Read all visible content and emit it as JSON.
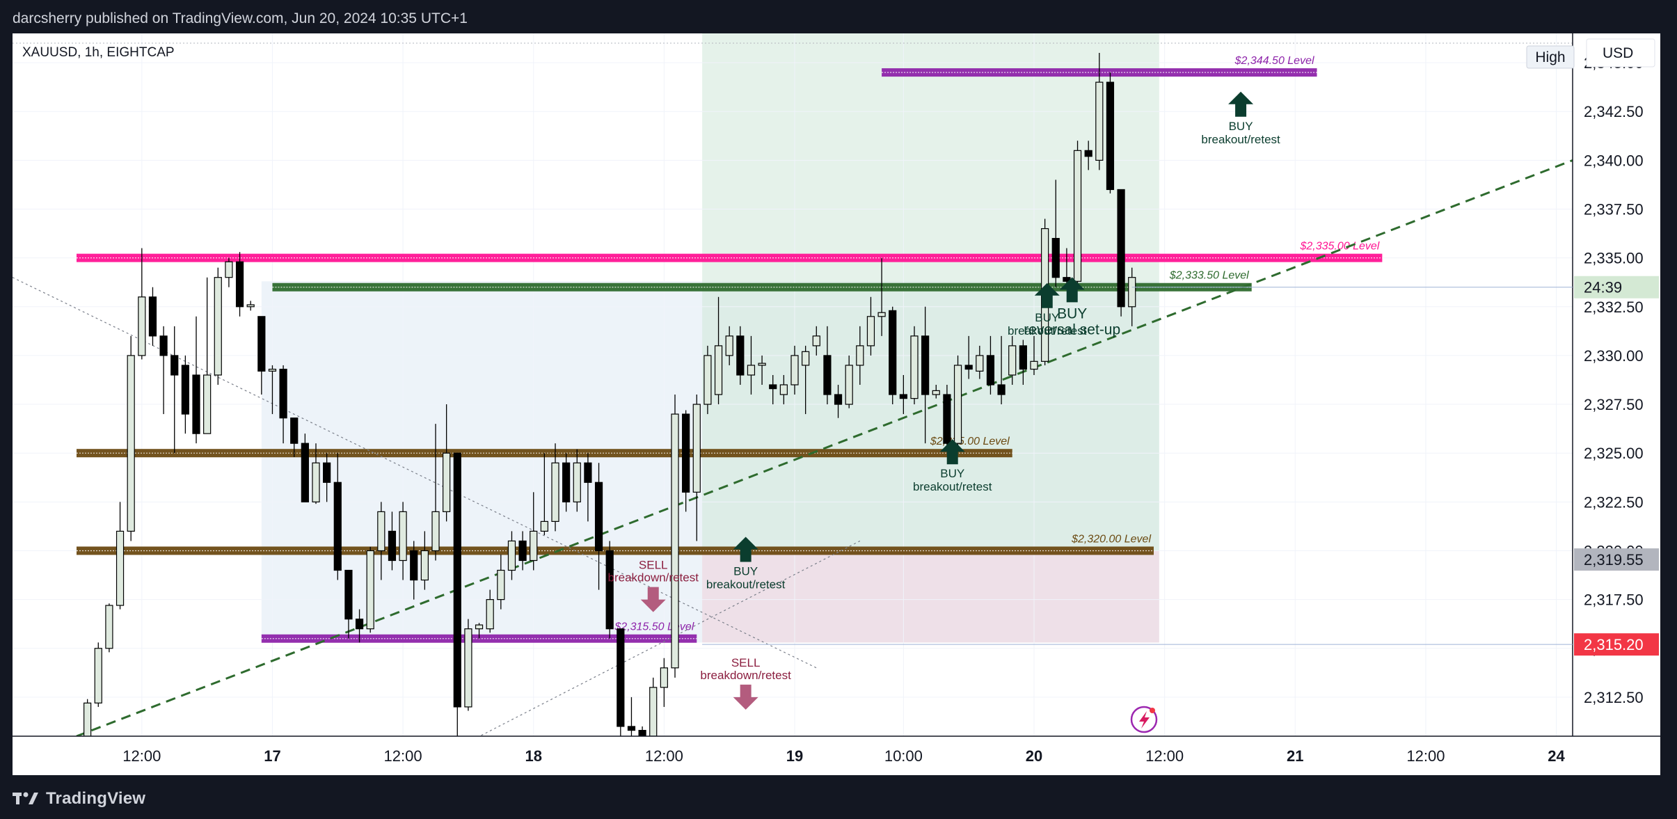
{
  "header": {
    "published_text": "darcsherry published on TradingView.com, Jun 20, 2024 10:35 UTC+1"
  },
  "chart_title": "XAUUSD, 1h, EIGHTCAP",
  "buttons": {
    "high": "High",
    "currency": "USD"
  },
  "footer": {
    "brand": "TradingView"
  },
  "colors": {
    "background": "#131722",
    "up_candle_fill": "#dfeadf",
    "down_candle_fill": "#000000",
    "level_pink": "#ff1493",
    "level_green": "#2e6b2e",
    "level_brown": "#6b4a12",
    "level_purple": "#8e24aa",
    "trend_green": "#2e6b2e",
    "buy_arrow": "#0b3d2e",
    "sell_arrow": "#b35c7e",
    "price_current_bg": "#d4e9d4",
    "price_mid_bg": "#b2b5be",
    "price_red_bg": "#f23645"
  },
  "chart_data": {
    "type": "candlestick",
    "title": "XAUUSD, 1h, EIGHTCAP",
    "currency": "USD",
    "ylim": [
      2310.5,
      2346.5
    ],
    "y_ticks": [
      2312.5,
      2315.0,
      2317.5,
      2320.0,
      2322.5,
      2325.0,
      2327.5,
      2330.0,
      2332.5,
      2335.0,
      2337.5,
      2340.0,
      2342.5,
      2345.0
    ],
    "x_ticks": [
      {
        "label": "12:00",
        "t": 6
      },
      {
        "label": "17",
        "t": 18
      },
      {
        "label": "12:00",
        "t": 30
      },
      {
        "label": "18",
        "t": 42
      },
      {
        "label": "12:00",
        "t": 54
      },
      {
        "label": "19",
        "t": 66
      },
      {
        "label": "10:00",
        "t": 76
      },
      {
        "label": "20",
        "t": 88
      },
      {
        "label": "12:00",
        "t": 100
      },
      {
        "label": "21",
        "t": 112
      },
      {
        "label": "12:00",
        "t": 124
      },
      {
        "label": "24",
        "t": 136
      }
    ],
    "t_range": [
      0,
      137.5
    ],
    "candles": [
      [
        0,
        2310.0,
        2310.2,
        2309.5,
        2310.4
      ],
      [
        1,
        2310.2,
        2312.2,
        2310.0,
        2312.4
      ],
      [
        2,
        2312.2,
        2315.0,
        2312.0,
        2315.3
      ],
      [
        3,
        2315.0,
        2317.2,
        2314.8,
        2317.3
      ],
      [
        4,
        2317.2,
        2321.0,
        2317.0,
        2322.5
      ],
      [
        5,
        2321.0,
        2330.0,
        2320.5,
        2331.0
      ],
      [
        6,
        2330.0,
        2333.0,
        2329.8,
        2335.5
      ],
      [
        7,
        2333.0,
        2331.0,
        2330.5,
        2333.5
      ],
      [
        8,
        2331.0,
        2330.0,
        2327.0,
        2331.5
      ],
      [
        9,
        2330.0,
        2329.0,
        2325.0,
        2331.5
      ],
      [
        10,
        2329.5,
        2327.0,
        2326.0,
        2330.0
      ],
      [
        11,
        2329.0,
        2326.0,
        2325.5,
        2332.0
      ],
      [
        12,
        2326.0,
        2329.0,
        2326.0,
        2334.0
      ],
      [
        13,
        2329.0,
        2334.0,
        2328.5,
        2334.5
      ],
      [
        14,
        2334.0,
        2334.8,
        2333.5,
        2335.0
      ],
      [
        15,
        2334.8,
        2332.5,
        2332.0,
        2335.3
      ],
      [
        16,
        2332.5,
        2332.6,
        2332.3,
        2332.8
      ],
      [
        17,
        2332.0,
        2329.2,
        2328.0,
        2332.0
      ],
      [
        18,
        2329.2,
        2329.3,
        2327.0,
        2329.5
      ],
      [
        19,
        2329.3,
        2326.8,
        2325.5,
        2329.5
      ],
      [
        20,
        2326.8,
        2325.5,
        2324.8,
        2326.8
      ],
      [
        21,
        2325.5,
        2322.5,
        2322.5,
        2326.0
      ],
      [
        22,
        2322.5,
        2324.5,
        2322.4,
        2325.5
      ],
      [
        23,
        2324.5,
        2323.5,
        2322.5,
        2325.0
      ],
      [
        24,
        2323.5,
        2319.0,
        2318.5,
        2325.0
      ],
      [
        25,
        2319.0,
        2316.5,
        2315.5,
        2319.0
      ],
      [
        26,
        2316.5,
        2316.0,
        2315.3,
        2317.0
      ],
      [
        27,
        2316.0,
        2320.0,
        2315.8,
        2320.2
      ],
      [
        28,
        2320.0,
        2322.0,
        2318.5,
        2322.5
      ],
      [
        29,
        2321.0,
        2319.5,
        2319.0,
        2322.0
      ],
      [
        30,
        2319.5,
        2322.0,
        2318.5,
        2322.5
      ],
      [
        31,
        2320.0,
        2318.5,
        2317.5,
        2320.5
      ],
      [
        32,
        2318.5,
        2320.0,
        2318.0,
        2321.0
      ],
      [
        33,
        2320.0,
        2322.0,
        2319.5,
        2326.5
      ],
      [
        34,
        2322.0,
        2325.0,
        2321.5,
        2327.5
      ],
      [
        35,
        2325.0,
        2312.0,
        2310.2,
        2325.0
      ],
      [
        36,
        2312.0,
        2316.0,
        2311.8,
        2316.5
      ],
      [
        37,
        2316.0,
        2316.2,
        2315.5,
        2316.3
      ],
      [
        38,
        2316.0,
        2317.5,
        2315.8,
        2318.0
      ],
      [
        39,
        2317.5,
        2319.0,
        2317.0,
        2319.8
      ],
      [
        40,
        2319.0,
        2320.5,
        2318.5,
        2321.0
      ],
      [
        41,
        2320.5,
        2319.5,
        2319.0,
        2321.0
      ],
      [
        42,
        2319.5,
        2321.0,
        2319.0,
        2323.0
      ],
      [
        43,
        2321.0,
        2321.5,
        2320.8,
        2325.0
      ],
      [
        44,
        2321.5,
        2324.5,
        2321.0,
        2325.5
      ],
      [
        45,
        2324.5,
        2322.5,
        2322.0,
        2325.0
      ],
      [
        46,
        2322.5,
        2324.5,
        2322.0,
        2325.2
      ],
      [
        47,
        2324.5,
        2323.5,
        2321.5,
        2325.0
      ],
      [
        48,
        2323.5,
        2320.0,
        2318.0,
        2324.5
      ],
      [
        49,
        2320.0,
        2316.0,
        2315.5,
        2320.5
      ],
      [
        50,
        2316.0,
        2311.0,
        2310.5,
        2316.0
      ],
      [
        51,
        2311.0,
        2310.8,
        2310.5,
        2312.5
      ],
      [
        52,
        2310.8,
        2310.5,
        2310.2,
        2311.0
      ],
      [
        53,
        2310.5,
        2313.0,
        2310.3,
        2313.5
      ],
      [
        54,
        2313.0,
        2314.0,
        2312.0,
        2314.5
      ],
      [
        55,
        2314.0,
        2327.0,
        2313.5,
        2328.0
      ],
      [
        56,
        2327.0,
        2323.0,
        2322.0,
        2327.2
      ],
      [
        57,
        2323.0,
        2327.5,
        2320.5,
        2328.0
      ],
      [
        58,
        2327.5,
        2330.0,
        2327.0,
        2330.5
      ],
      [
        59,
        2328.0,
        2330.5,
        2327.5,
        2333.0
      ],
      [
        60,
        2330.0,
        2331.0,
        2329.5,
        2331.5
      ],
      [
        61,
        2331.0,
        2329.0,
        2328.5,
        2331.5
      ],
      [
        62,
        2329.0,
        2329.5,
        2328.0,
        2331.0
      ],
      [
        63,
        2329.5,
        2329.6,
        2328.5,
        2330.0
      ],
      [
        64,
        2328.5,
        2328.3,
        2327.5,
        2329.0
      ],
      [
        65,
        2328.0,
        2328.5,
        2327.5,
        2329.0
      ],
      [
        66,
        2328.5,
        2330.0,
        2328.0,
        2330.5
      ],
      [
        67,
        2329.5,
        2330.2,
        2327.0,
        2330.5
      ],
      [
        68,
        2330.5,
        2331.0,
        2330.0,
        2331.5
      ],
      [
        69,
        2330.0,
        2328.0,
        2327.5,
        2331.5
      ],
      [
        70,
        2328.0,
        2327.5,
        2326.8,
        2328.5
      ],
      [
        71,
        2327.5,
        2329.5,
        2327.3,
        2330.0
      ],
      [
        72,
        2329.5,
        2330.5,
        2328.5,
        2331.5
      ],
      [
        73,
        2330.5,
        2332.0,
        2330.0,
        2333.0
      ],
      [
        74,
        2332.0,
        2332.2,
        2331.0,
        2335.0
      ],
      [
        75,
        2332.3,
        2328.0,
        2327.5,
        2332.5
      ],
      [
        76,
        2328.0,
        2327.8,
        2327.0,
        2329.0
      ],
      [
        77,
        2327.8,
        2331.0,
        2327.5,
        2331.5
      ],
      [
        78,
        2331.0,
        2328.0,
        2325.5,
        2332.5
      ],
      [
        79,
        2328.0,
        2328.2,
        2327.8,
        2328.5
      ],
      [
        80,
        2328.0,
        2325.5,
        2325.2,
        2328.5
      ],
      [
        81,
        2325.5,
        2329.5,
        2325.3,
        2330.0
      ],
      [
        82,
        2329.5,
        2329.3,
        2328.8,
        2331.0
      ],
      [
        83,
        2329.2,
        2330.0,
        2328.8,
        2330.5
      ],
      [
        84,
        2330.0,
        2328.5,
        2328.0,
        2331.0
      ],
      [
        85,
        2328.5,
        2328.0,
        2327.5,
        2331.0
      ],
      [
        86,
        2329.0,
        2330.5,
        2328.5,
        2331.0
      ],
      [
        87,
        2330.5,
        2329.3,
        2328.5,
        2330.8
      ],
      [
        88,
        2329.3,
        2329.7,
        2329.0,
        2331.0
      ],
      [
        89,
        2329.7,
        2336.5,
        2329.5,
        2337.0
      ],
      [
        90,
        2336.0,
        2334.0,
        2333.5,
        2339.0
      ],
      [
        91,
        2334.0,
        2333.8,
        2333.5,
        2335.5
      ],
      [
        92,
        2333.8,
        2340.5,
        2333.5,
        2341.0
      ],
      [
        93,
        2340.5,
        2340.2,
        2339.5,
        2341.0
      ],
      [
        94,
        2340.0,
        2344.0,
        2339.5,
        2345.5
      ],
      [
        95,
        2344.0,
        2338.5,
        2338.3,
        2344.5
      ],
      [
        96,
        2338.5,
        2332.5,
        2332.0,
        2338.5
      ],
      [
        97,
        2332.5,
        2334.0,
        2331.5,
        2334.5
      ]
    ],
    "levels": [
      {
        "name": "level-2344-50",
        "price": 2344.5,
        "t_start": 74,
        "t_end": 114,
        "color": "#8e24aa",
        "label": "$2,344.50 Level"
      },
      {
        "name": "level-2335-00",
        "price": 2335.0,
        "t_start": 0,
        "t_end": 120,
        "color": "#ff1493",
        "label": "$2,335.00 Level"
      },
      {
        "name": "level-2333-50",
        "price": 2333.5,
        "t_start": 18,
        "t_end": 108,
        "color": "#2e6b2e",
        "label": "$2,333.50 Level"
      },
      {
        "name": "level-2325-00",
        "price": 2325.0,
        "t_start": 0,
        "t_end": 86,
        "color": "#6b4a12",
        "label": "$2,325.00 Level"
      },
      {
        "name": "level-2320-00",
        "price": 2320.0,
        "t_start": 0,
        "t_end": 99,
        "color": "#6b4a12",
        "label": "$2,320.00 Level"
      },
      {
        "name": "level-2315-50",
        "price": 2315.5,
        "t_start": 17,
        "t_end": 57,
        "color": "#8e24aa",
        "label": "$2,315.50 Level"
      }
    ],
    "signals": [
      {
        "side": "buy",
        "t": 107,
        "price": 2342.8,
        "line1": "BUY",
        "line2": "breakout/retest"
      },
      {
        "side": "buy",
        "t": 80.5,
        "price": 2325.0,
        "line1": "BUY",
        "line2": "breakout/retest"
      },
      {
        "side": "buy",
        "t": 61.5,
        "price": 2320.0,
        "line1": "BUY",
        "line2": "breakout/retest"
      },
      {
        "side": "buy",
        "t": 89.2,
        "price": 2333.0,
        "line1": "BUY",
        "line2": "breakout/retest"
      },
      {
        "side": "buy",
        "t": 91.5,
        "price": 2333.3,
        "line1": "BUY",
        "line2": "reversal set-up"
      },
      {
        "side": "sell",
        "t": 53,
        "price": 2317.5,
        "line1": "SELL",
        "line2": "breakdown/retest"
      },
      {
        "side": "sell",
        "t": 61.5,
        "price": 2312.5,
        "line1": "SELL",
        "line2": "breakdown/retest"
      }
    ],
    "trendlines": [
      {
        "name": "ascending-trendline",
        "t0": 0,
        "p0": 2310.5,
        "t1": 137.5,
        "p1": 2340.0
      }
    ],
    "price_labels": {
      "countdown": {
        "price": 2333.5,
        "text": "24:39"
      },
      "mid": {
        "price": 2319.55,
        "text": "2,319.55"
      },
      "low": {
        "price": 2315.2,
        "text": "2,315.20"
      }
    }
  }
}
